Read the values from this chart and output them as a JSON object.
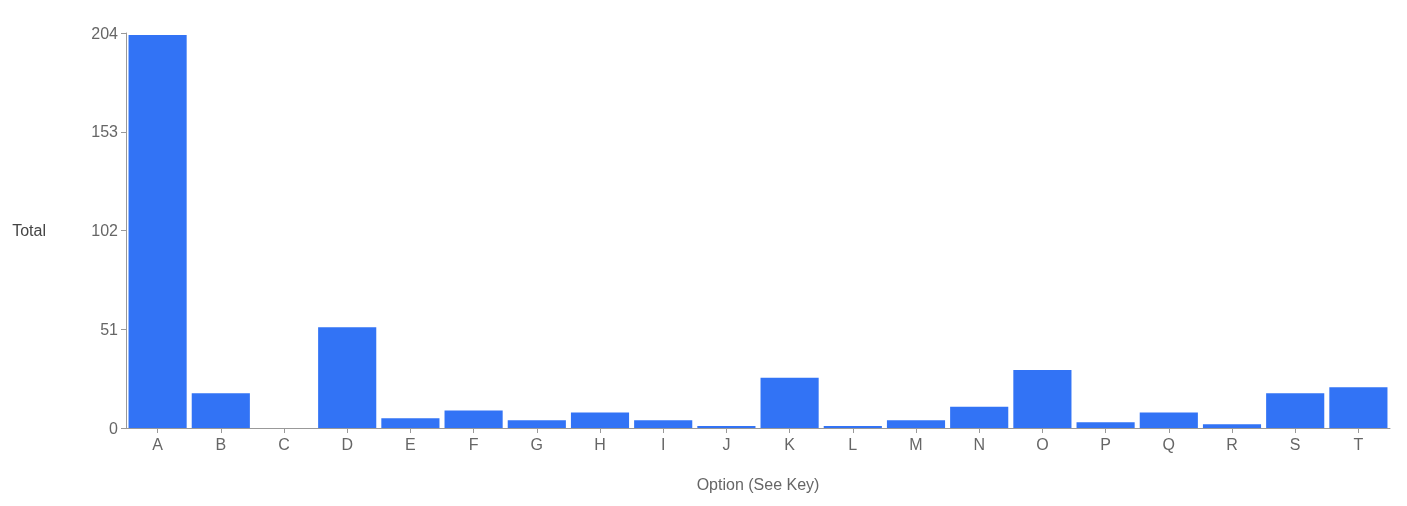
{
  "chart_data": {
    "type": "bar",
    "xlabel": "Option (See Key)",
    "ylabel": "Total",
    "categories": [
      "A",
      "B",
      "C",
      "D",
      "E",
      "F",
      "G",
      "H",
      "I",
      "J",
      "K",
      "L",
      "M",
      "N",
      "O",
      "P",
      "Q",
      "R",
      "S",
      "T"
    ],
    "values": [
      203,
      18,
      0,
      52,
      5,
      9,
      4,
      8,
      4,
      1,
      26,
      1,
      4,
      11,
      30,
      3,
      8,
      2,
      18,
      21
    ],
    "color": "#3273f5",
    "ylim": [
      0,
      204
    ],
    "yticks": [
      0,
      51,
      102,
      153,
      204
    ]
  }
}
